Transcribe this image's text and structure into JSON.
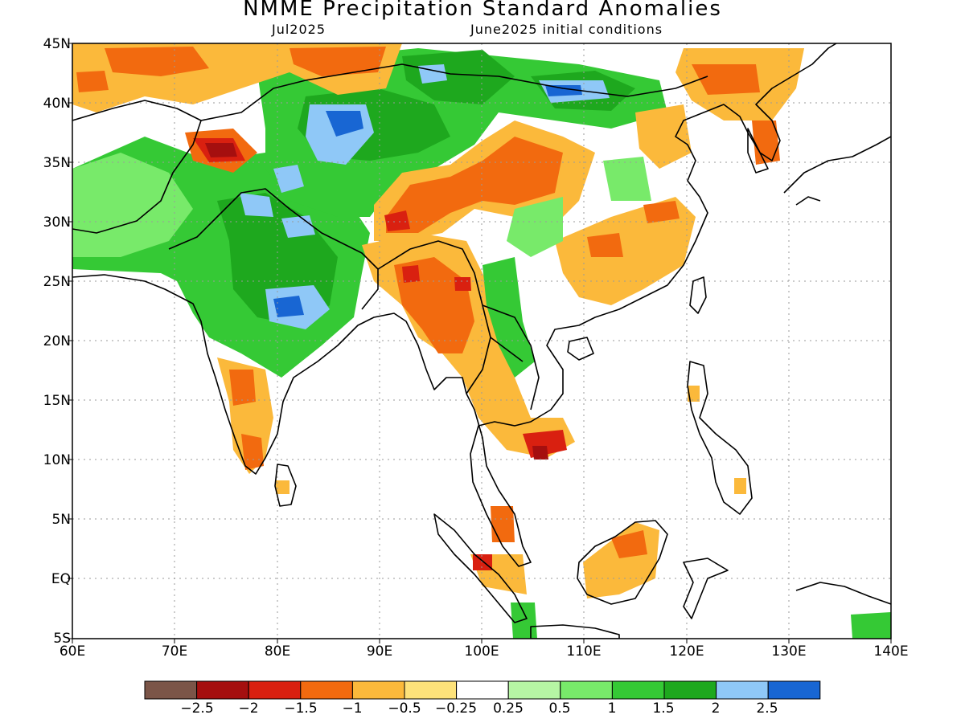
{
  "title": "NMME Precipitation Standard Anomalies",
  "target_month": "Jul2025",
  "initial_conditions": "June2025 initial conditions",
  "lat_labels": [
    "45N",
    "40N",
    "35N",
    "30N",
    "25N",
    "20N",
    "15N",
    "10N",
    "5N",
    "EQ",
    "5S"
  ],
  "lon_labels": [
    "60E",
    "70E",
    "80E",
    "90E",
    "100E",
    "110E",
    "120E",
    "130E",
    "140E"
  ],
  "colorbar": {
    "colors": [
      "#7b5548",
      "#a50f0f",
      "#d92010",
      "#f26a0f",
      "#fbb93b",
      "#fde27a",
      "#ffffff",
      "#b6f5a4",
      "#78ea6a",
      "#35c935",
      "#1ea81e",
      "#8fc8f7",
      "#1866d3"
    ],
    "labels": [
      "−2.5",
      "−2",
      "−1.5",
      "−1",
      "−0.5",
      "−0.25",
      "0.25",
      "0.5",
      "1",
      "1.5",
      "2",
      "2.5"
    ]
  }
}
